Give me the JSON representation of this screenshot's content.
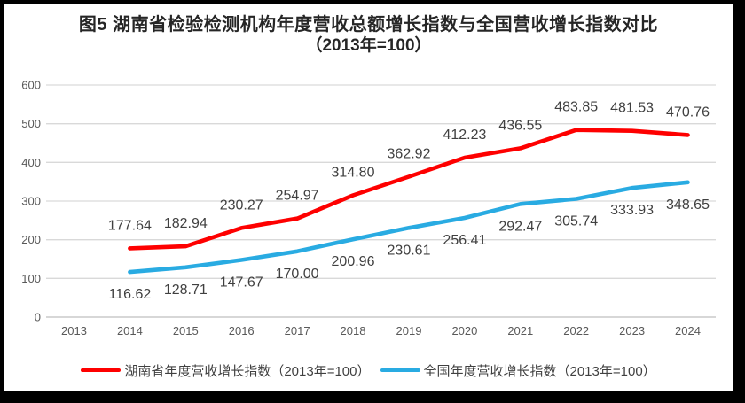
{
  "chart_data": {
    "type": "line",
    "title": "图5 湖南省检验检测机构年度营收总额增长指数与全国营收增长指数对比",
    "subtitle": "（2013年=100）",
    "categories": [
      "2013",
      "2014",
      "2015",
      "2016",
      "2017",
      "2018",
      "2019",
      "2020",
      "2021",
      "2022",
      "2023",
      "2024"
    ],
    "series": [
      {
        "name": "湖南省年度营收增长指数（2013年=100）",
        "color": "#FE0000",
        "label_position": "above",
        "values": [
          null,
          177.64,
          182.94,
          230.27,
          254.97,
          314.8,
          362.92,
          412.23,
          436.55,
          483.85,
          481.53,
          470.76
        ]
      },
      {
        "name": "全国年度营收增长指数（2013年=100）",
        "color": "#29ABE2",
        "label_position": "below",
        "values": [
          null,
          116.62,
          128.71,
          147.67,
          170.0,
          200.96,
          230.61,
          256.41,
          292.47,
          305.74,
          333.93,
          348.65
        ]
      }
    ],
    "xlabel": "",
    "ylabel": "",
    "ylim": [
      0,
      600
    ],
    "yticks": [
      0,
      100,
      200,
      300,
      400,
      500,
      600
    ],
    "grid": true,
    "legend_position": "bottom",
    "colors": {
      "gridline": "#D9D9D9",
      "axis_line": "#BFBFBF",
      "axis_text": "#595959",
      "data_label_text": "#404040",
      "frame": "#000000",
      "background": "#FFFFFF"
    }
  }
}
